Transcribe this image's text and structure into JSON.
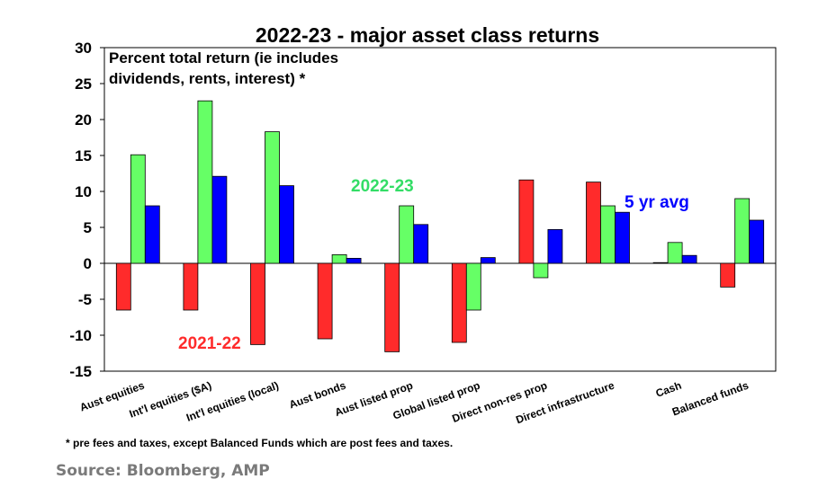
{
  "chart_data": {
    "type": "bar",
    "title": "2022-23 - major asset class returns",
    "subtitle_lines": [
      "Percent total return (ie includes",
      "dividends, rents, interest) *"
    ],
    "footnote": "* pre fees and taxes, except Balanced Funds which are post fees and taxes.",
    "ylim": [
      -15,
      30
    ],
    "yticks": [
      30,
      25,
      20,
      15,
      10,
      5,
      0,
      -5,
      -10,
      -15
    ],
    "ytick_labels": [
      "30",
      "25",
      "20",
      "15",
      "10",
      "5",
      "0",
      "-5",
      "-10",
      "-15"
    ],
    "grid": false,
    "categories": [
      "Aust equities",
      "Int'l equities ($A)",
      "Int'l equities (local)",
      "Aust bonds",
      "Aust listed prop",
      "Global listed prop",
      "Direct non-res prop",
      "Direct infrastructure",
      "Cash",
      "Balanced funds"
    ],
    "series": [
      {
        "name": "2021-22",
        "color": "#ff2b2b",
        "values": [
          -6.5,
          -6.5,
          -11.3,
          -10.5,
          -12.3,
          -11.0,
          11.6,
          11.3,
          0.1,
          -3.3
        ]
      },
      {
        "name": "2022-23",
        "color": "#66ff66",
        "values": [
          15.1,
          22.6,
          18.3,
          1.2,
          8.0,
          -6.5,
          -2.0,
          8.0,
          2.9,
          9.0
        ]
      },
      {
        "name": "5 yr avg",
        "color": "#0000ff",
        "values": [
          8.0,
          12.1,
          10.8,
          0.7,
          5.4,
          0.8,
          4.7,
          7.1,
          1.1,
          6.0
        ]
      }
    ],
    "series_label_colors": [
      "#ff2b2b",
      "#33dd66",
      "#0000ff"
    ]
  },
  "source": "Source: Bloomberg, AMP"
}
